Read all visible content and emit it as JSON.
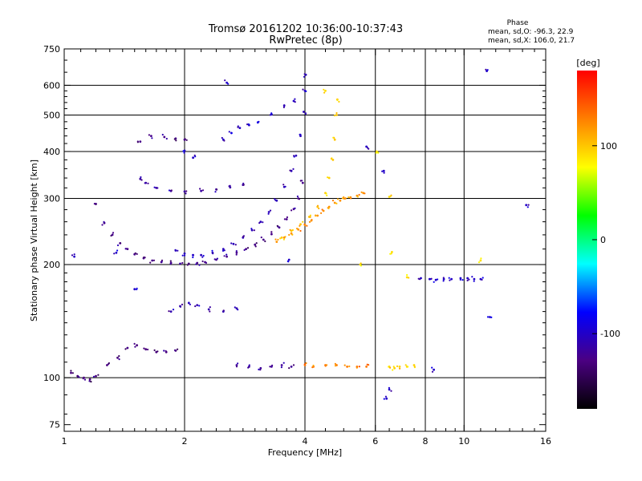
{
  "chart_data": {
    "type": "scatter",
    "title": "Tromsø 20161202 10:36:00-10:37:43",
    "subtitle": "RwPretec (8p)",
    "xlabel": "Frequency [MHz]",
    "ylabel": "Stationary phase Virtual Height [km]",
    "x_scale": "log",
    "y_scale": "log",
    "xlim": [
      1,
      16
    ],
    "ylim": [
      72,
      750
    ],
    "x_ticks": [
      1,
      2,
      4,
      6,
      8,
      10,
      16
    ],
    "x_tick_labels": [
      "1",
      "2",
      "4",
      "6",
      "8",
      "10",
      "16"
    ],
    "x_minor_ticks": [
      1.1,
      1.2,
      1.3,
      1.4,
      1.5,
      1.6,
      1.7,
      1.8,
      1.9,
      2.2,
      2.4,
      2.6,
      2.8,
      3,
      3.2,
      3.4,
      3.6,
      3.8,
      4.5,
      5,
      5.5,
      6.5,
      7,
      7.5,
      8.5,
      9,
      9.5,
      11,
      12,
      13,
      14,
      15
    ],
    "x_gridlines": [
      2,
      4,
      6,
      8,
      10
    ],
    "y_ticks": [
      75,
      100,
      200,
      300,
      400,
      500,
      600,
      750
    ],
    "y_tick_labels": [
      "75",
      "100",
      "200",
      "300",
      "400",
      "500",
      "600",
      "750"
    ],
    "y_minor_ticks": [
      80,
      90,
      110,
      120,
      130,
      140,
      150,
      160,
      170,
      180,
      190,
      220,
      240,
      260,
      280,
      320,
      340,
      360,
      380,
      420,
      440,
      460,
      480,
      520,
      540,
      560,
      580,
      650,
      700
    ],
    "y_gridlines": [
      100,
      200,
      300,
      400,
      500,
      600
    ],
    "grid": true,
    "legend": {
      "title": "Phase",
      "entries": [
        "mean, sd,O: -96.3, 22.9",
        "mean, sd,X: 106.0, 21.7"
      ],
      "position": "top-right"
    },
    "colorbar": {
      "label": "[deg]",
      "range": [
        -180,
        180
      ],
      "ticks": [
        -100,
        0,
        100
      ],
      "tick_labels": [
        "-100",
        "0",
        "100"
      ],
      "colors": [
        "#000000",
        "#4b0082",
        "#0000ff",
        "#00ffff",
        "#00ff00",
        "#ffff00",
        "#ff7f00",
        "#ff0000"
      ]
    },
    "series": [
      {
        "phase": -125,
        "x": [
          1.2,
          1.26,
          1.32,
          1.38,
          1.44,
          1.5,
          1.58,
          1.66,
          1.75,
          1.85,
          1.95,
          2.05,
          2.15,
          2.25,
          2.4,
          2.55,
          2.7,
          2.85,
          3.0,
          3.15,
          3.3,
          3.45,
          3.6,
          3.75,
          3.85,
          3.95
        ],
        "y": [
          290,
          258,
          240,
          228,
          220,
          213,
          208,
          205,
          203,
          202,
          201,
          201,
          202,
          203,
          206,
          210,
          215,
          220,
          226,
          233,
          241,
          251,
          264,
          281,
          300,
          330
        ]
      },
      {
        "phase": -105,
        "x": [
          1.9,
          2.0,
          2.1,
          2.2,
          2.35,
          2.5,
          2.65,
          2.8,
          2.95,
          3.1,
          3.25,
          3.4,
          3.55,
          3.7,
          3.8,
          3.9,
          3.97,
          4.0,
          4.02
        ],
        "y": [
          218,
          214,
          212,
          212,
          215,
          220,
          227,
          236,
          247,
          260,
          276,
          296,
          322,
          355,
          390,
          440,
          510,
          580,
          640
        ]
      },
      {
        "phase": -115,
        "x": [
          1.55,
          1.6,
          1.7,
          1.85,
          2.0,
          2.2,
          2.4,
          2.6,
          2.8
        ],
        "y": [
          338,
          330,
          320,
          314,
          313,
          314,
          317,
          321,
          326
        ]
      },
      {
        "phase": -125,
        "x": [
          1.55,
          1.65,
          1.78,
          1.9,
          2.0
        ],
        "y": [
          425,
          440,
          437,
          433,
          430
        ]
      },
      {
        "phase": -100,
        "x": [
          2.5,
          2.62,
          2.75,
          2.9,
          3.05,
          3.3,
          3.55,
          3.75
        ],
        "y": [
          430,
          448,
          462,
          470,
          478,
          502,
          530,
          545
        ]
      },
      {
        "phase": 120,
        "x": [
          3.4,
          3.55,
          3.7,
          3.85,
          4.0,
          4.15,
          4.3,
          4.45,
          4.6,
          4.75,
          4.9,
          5.05,
          5.2,
          5.4,
          5.6
        ],
        "y": [
          230,
          236,
          242,
          248,
          255,
          262,
          270,
          278,
          285,
          292,
          296,
          300,
          302,
          305,
          310
        ]
      },
      {
        "phase": 100,
        "x": [
          3.5,
          3.7,
          3.9,
          4.1,
          4.3,
          4.5,
          4.6,
          4.7,
          4.75,
          4.8,
          4.82
        ],
        "y": [
          236,
          246,
          256,
          268,
          285,
          310,
          340,
          380,
          430,
          500,
          550
        ]
      },
      {
        "phase": -130,
        "x": [
          1.04,
          1.08,
          1.12,
          1.16,
          1.2,
          1.28,
          1.36,
          1.44,
          1.52,
          1.6,
          1.7,
          1.8,
          1.9
        ],
        "y": [
          103,
          101,
          100,
          99,
          101,
          108,
          113,
          120,
          122,
          119,
          117,
          117,
          118
        ]
      },
      {
        "phase": -110,
        "x": [
          1.85,
          1.95,
          2.05,
          2.15,
          2.3,
          2.5,
          2.7
        ],
        "y": [
          150,
          155,
          158,
          156,
          152,
          150,
          153
        ]
      },
      {
        "phase": -120,
        "x": [
          2.7,
          2.9,
          3.1,
          3.3,
          3.5,
          3.7
        ],
        "y": [
          108,
          107,
          106,
          107,
          108,
          107
        ]
      },
      {
        "phase": 130,
        "x": [
          4.0,
          4.2,
          4.5,
          4.8,
          5.1,
          5.4,
          5.7
        ],
        "y": [
          108,
          107,
          108,
          108,
          107,
          107,
          107
        ]
      },
      {
        "phase": 95,
        "x": [
          6.5,
          6.7,
          6.9,
          7.2,
          7.5
        ],
        "y": [
          107,
          106,
          107,
          107,
          108
        ]
      },
      {
        "phase": -100,
        "x": [
          7.8,
          8.2,
          8.5,
          8.9,
          9.3,
          9.8,
          10.2,
          10.6,
          11.0
        ],
        "y": [
          184,
          183,
          182,
          183,
          183,
          184,
          184,
          183,
          183
        ]
      },
      {
        "phase": -100,
        "x": [
          1.06,
          1.35,
          1.5,
          2.0,
          2.1,
          2.55,
          3.65,
          5.7,
          6.3,
          6.4,
          6.5,
          8.4,
          11.4,
          11.6,
          14.3
        ],
        "y": [
          210,
          215,
          172,
          402,
          385,
          610,
          206,
          412,
          355,
          88,
          93,
          105,
          655,
          145,
          288
        ]
      },
      {
        "phase": 90,
        "x": [
          4.5,
          5.5,
          6.05,
          6.5,
          6.6,
          7.2,
          11.0
        ],
        "y": [
          580,
          200,
          400,
          303,
          216,
          185,
          205
        ]
      }
    ]
  }
}
